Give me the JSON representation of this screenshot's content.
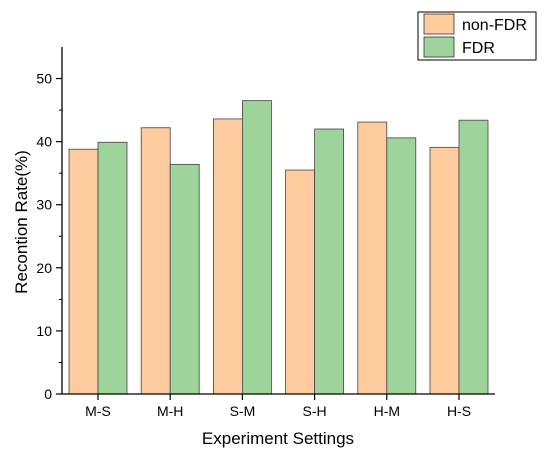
{
  "chart_data": {
    "type": "bar",
    "title": "",
    "xlabel": "Experiment Settings",
    "ylabel": "Recontion Rate(%)",
    "categories": [
      "M-S",
      "M-H",
      "S-M",
      "S-H",
      "H-M",
      "H-S"
    ],
    "series": [
      {
        "name": "non-FDR",
        "color": "#FDCB9E",
        "values": [
          38.8,
          42.2,
          43.6,
          35.5,
          43.1,
          39.1
        ]
      },
      {
        "name": "FDR",
        "color": "#9ED39C",
        "values": [
          39.9,
          36.4,
          46.5,
          42.0,
          40.6,
          43.4
        ]
      }
    ],
    "ylim": [
      0,
      55
    ],
    "yticks": [
      0,
      10,
      20,
      30,
      40,
      50
    ],
    "grid": false,
    "legend_position": "top-right"
  }
}
